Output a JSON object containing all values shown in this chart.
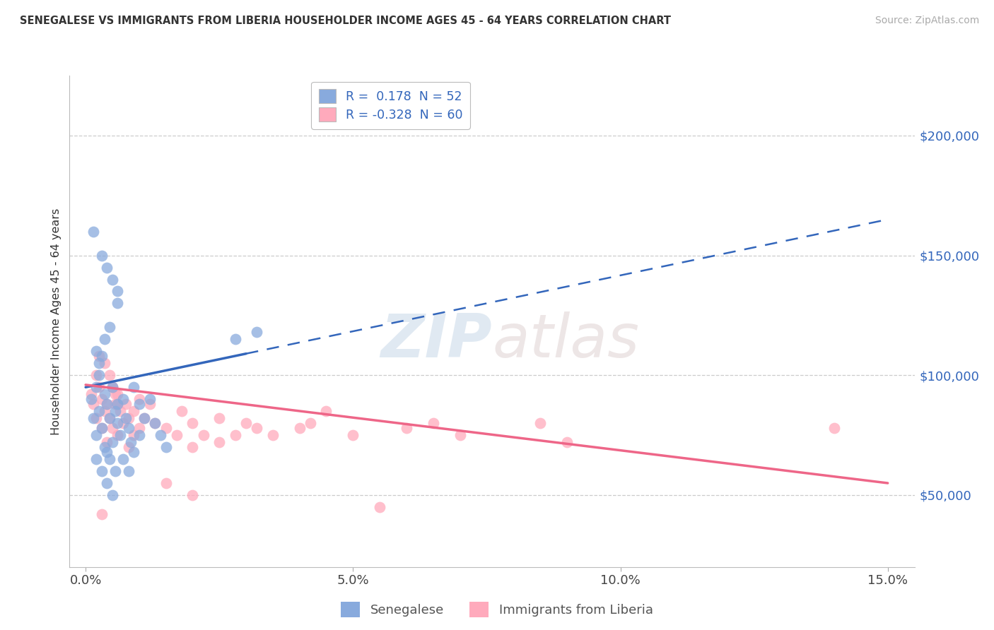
{
  "title": "SENEGALESE VS IMMIGRANTS FROM LIBERIA HOUSEHOLDER INCOME AGES 45 - 64 YEARS CORRELATION CHART",
  "source": "Source: ZipAtlas.com",
  "ylabel_label": "Householder Income Ages 45 - 64 years",
  "legend_blue_r": "0.178",
  "legend_blue_n": "52",
  "legend_pink_r": "-0.328",
  "legend_pink_n": "60",
  "blue_color": "#88AADD",
  "pink_color": "#FFAABC",
  "blue_line_color": "#3366BB",
  "pink_line_color": "#EE6688",
  "watermark_zip": "ZIP",
  "watermark_atlas": "atlas",
  "ytick_vals": [
    50000,
    100000,
    150000,
    200000
  ],
  "ytick_labels": [
    "$50,000",
    "$100,000",
    "$150,000",
    "$200,000"
  ],
  "xtick_vals": [
    0.0,
    5.0,
    10.0,
    15.0
  ],
  "xtick_labels": [
    "0.0%",
    "5.0%",
    "10.0%",
    "15.0%"
  ],
  "xlim": [
    -0.3,
    15.5
  ],
  "ylim": [
    20000,
    225000
  ],
  "blue_reg_x0": 0.0,
  "blue_reg_y0": 95000,
  "blue_reg_x1": 15.0,
  "blue_reg_y1": 165000,
  "blue_solid_end_x": 3.0,
  "pink_reg_x0": 0.0,
  "pink_reg_y0": 96000,
  "pink_reg_x1": 15.0,
  "pink_reg_y1": 55000,
  "blue_scatter_x": [
    0.1,
    0.15,
    0.2,
    0.2,
    0.25,
    0.25,
    0.3,
    0.3,
    0.35,
    0.35,
    0.4,
    0.4,
    0.45,
    0.45,
    0.5,
    0.5,
    0.55,
    0.55,
    0.6,
    0.6,
    0.65,
    0.7,
    0.7,
    0.75,
    0.8,
    0.8,
    0.85,
    0.9,
    0.9,
    1.0,
    1.0,
    1.1,
    1.2,
    1.3,
    1.4,
    1.5,
    0.3,
    0.4,
    0.5,
    0.6,
    0.2,
    0.25,
    0.35,
    0.45,
    2.8,
    0.15,
    0.2,
    0.3,
    0.4,
    0.5,
    3.2,
    0.6
  ],
  "blue_scatter_y": [
    90000,
    82000,
    95000,
    75000,
    100000,
    85000,
    108000,
    78000,
    92000,
    70000,
    88000,
    68000,
    82000,
    65000,
    95000,
    72000,
    85000,
    60000,
    80000,
    88000,
    75000,
    90000,
    65000,
    82000,
    78000,
    60000,
    72000,
    95000,
    68000,
    88000,
    75000,
    82000,
    90000,
    80000,
    75000,
    70000,
    150000,
    145000,
    140000,
    135000,
    110000,
    105000,
    115000,
    120000,
    115000,
    160000,
    65000,
    60000,
    55000,
    50000,
    118000,
    130000
  ],
  "pink_scatter_x": [
    0.1,
    0.15,
    0.2,
    0.2,
    0.25,
    0.3,
    0.3,
    0.35,
    0.4,
    0.4,
    0.45,
    0.5,
    0.5,
    0.55,
    0.6,
    0.6,
    0.65,
    0.7,
    0.75,
    0.8,
    0.8,
    0.9,
    0.9,
    1.0,
    1.0,
    1.1,
    1.2,
    1.3,
    1.5,
    1.7,
    1.8,
    2.0,
    2.0,
    2.2,
    2.5,
    2.5,
    2.8,
    3.0,
    3.2,
    3.5,
    4.0,
    4.2,
    4.5,
    5.0,
    5.5,
    6.0,
    6.5,
    7.0,
    8.5,
    9.0,
    0.25,
    0.35,
    0.45,
    0.5,
    0.55,
    0.6,
    1.5,
    2.0,
    0.3,
    14.0
  ],
  "pink_scatter_y": [
    92000,
    88000,
    100000,
    82000,
    95000,
    90000,
    78000,
    85000,
    88000,
    72000,
    82000,
    95000,
    78000,
    88000,
    92000,
    75000,
    85000,
    80000,
    88000,
    82000,
    70000,
    85000,
    75000,
    90000,
    78000,
    82000,
    88000,
    80000,
    78000,
    75000,
    85000,
    80000,
    70000,
    75000,
    82000,
    72000,
    75000,
    80000,
    78000,
    75000,
    78000,
    80000,
    85000,
    75000,
    45000,
    78000,
    80000,
    75000,
    80000,
    72000,
    108000,
    105000,
    100000,
    95000,
    92000,
    88000,
    55000,
    50000,
    42000,
    78000
  ]
}
